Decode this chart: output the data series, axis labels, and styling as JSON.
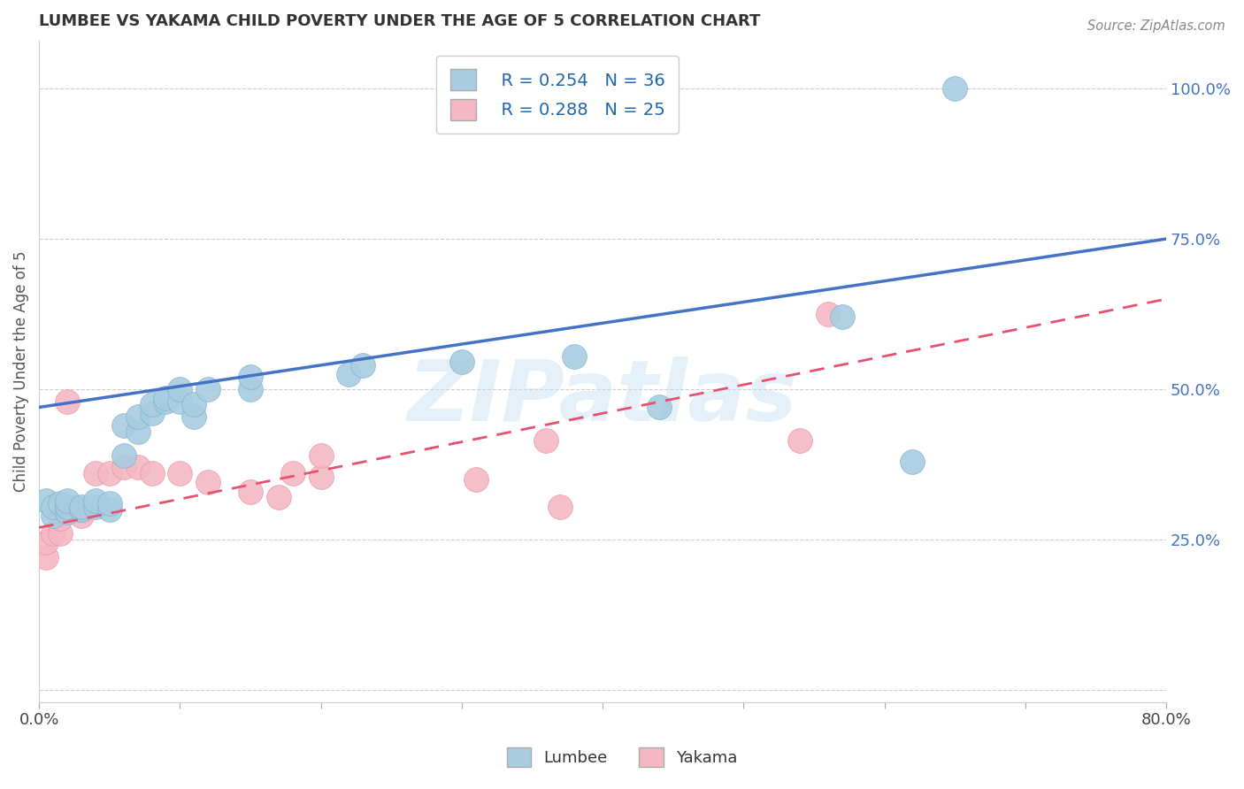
{
  "title": "LUMBEE VS YAKAMA CHILD POVERTY UNDER THE AGE OF 5 CORRELATION CHART",
  "source_text": "Source: ZipAtlas.com",
  "ylabel": "Child Poverty Under the Age of 5",
  "watermark": "ZIPatlas",
  "xlim": [
    0.0,
    0.8
  ],
  "ylim": [
    -0.02,
    1.08
  ],
  "xticks": [
    0.0,
    0.1,
    0.2,
    0.3,
    0.4,
    0.5,
    0.6,
    0.7,
    0.8
  ],
  "xticklabels": [
    "0.0%",
    "",
    "",
    "",
    "",
    "",
    "",
    "",
    "80.0%"
  ],
  "ytick_positions": [
    0.0,
    0.25,
    0.5,
    0.75,
    1.0
  ],
  "ytick_labels": [
    "",
    "25.0%",
    "50.0%",
    "75.0%",
    "100.0%"
  ],
  "blue_R": "R = 0.254",
  "blue_N": "N = 36",
  "pink_R": "R = 0.288",
  "pink_N": "N = 25",
  "lumbee_label": "Lumbee",
  "yakama_label": "Yakama",
  "blue_color": "#a8cce0",
  "pink_color": "#f4b8c4",
  "blue_edge_color": "#7ab0cc",
  "pink_edge_color": "#e890a0",
  "blue_line_color": "#4472c4",
  "pink_line_color": "#e85070",
  "grid_color": "#cccccc",
  "background_color": "#ffffff",
  "lumbee_x": [
    0.005,
    0.01,
    0.01,
    0.015,
    0.02,
    0.02,
    0.02,
    0.03,
    0.03,
    0.04,
    0.04,
    0.05,
    0.05,
    0.06,
    0.06,
    0.07,
    0.07,
    0.08,
    0.08,
    0.09,
    0.09,
    0.1,
    0.1,
    0.11,
    0.11,
    0.12,
    0.15,
    0.15,
    0.22,
    0.23,
    0.3,
    0.38,
    0.44,
    0.57,
    0.62,
    0.65
  ],
  "lumbee_y": [
    0.315,
    0.29,
    0.305,
    0.31,
    0.295,
    0.305,
    0.315,
    0.3,
    0.305,
    0.305,
    0.315,
    0.3,
    0.31,
    0.39,
    0.44,
    0.43,
    0.455,
    0.46,
    0.475,
    0.48,
    0.485,
    0.48,
    0.5,
    0.455,
    0.475,
    0.5,
    0.5,
    0.52,
    0.525,
    0.54,
    0.545,
    0.555,
    0.47,
    0.62,
    0.38,
    1.0
  ],
  "yakama_x": [
    0.005,
    0.005,
    0.01,
    0.015,
    0.015,
    0.02,
    0.03,
    0.03,
    0.04,
    0.05,
    0.06,
    0.07,
    0.08,
    0.1,
    0.12,
    0.15,
    0.17,
    0.18,
    0.2,
    0.2,
    0.31,
    0.36,
    0.37,
    0.54,
    0.56
  ],
  "yakama_y": [
    0.22,
    0.245,
    0.26,
    0.26,
    0.285,
    0.48,
    0.29,
    0.3,
    0.36,
    0.36,
    0.37,
    0.37,
    0.36,
    0.36,
    0.345,
    0.33,
    0.32,
    0.36,
    0.355,
    0.39,
    0.35,
    0.415,
    0.305,
    0.415,
    0.625
  ]
}
